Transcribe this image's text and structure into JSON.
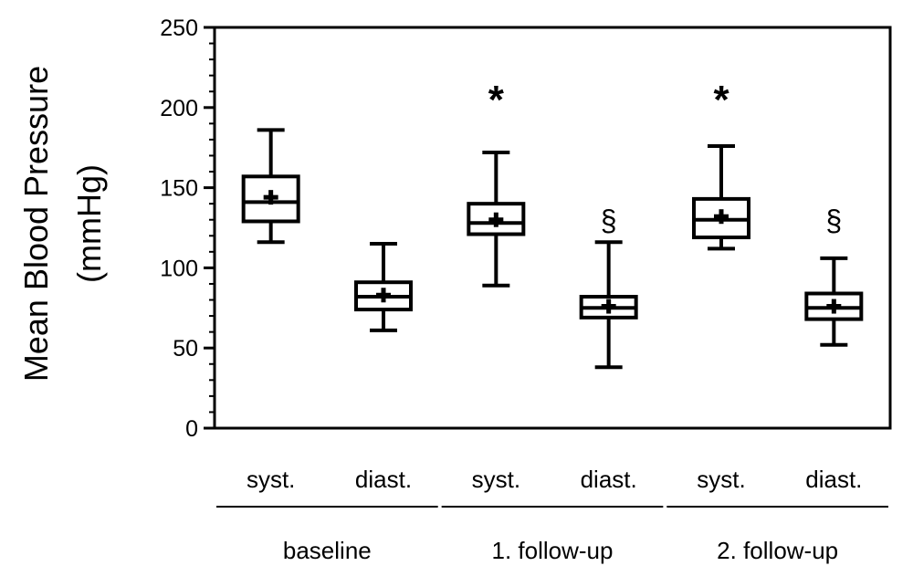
{
  "chart_data": {
    "type": "box",
    "ylabel_line1": "Mean Blood Pressure",
    "ylabel_line2": "(mmHg)",
    "ylim": [
      0,
      250
    ],
    "yticks": [
      0,
      50,
      100,
      150,
      200,
      250
    ],
    "ytick_labels": [
      "0",
      "50",
      "100",
      "150",
      "200",
      "250"
    ],
    "minor_ticks": true,
    "grid": false,
    "legend": "none",
    "categories": [
      "syst.",
      "diast.",
      "syst.",
      "diast.",
      "syst.",
      "diast."
    ],
    "groups": [
      {
        "label": "baseline",
        "span": [
          0,
          1
        ]
      },
      {
        "label": "1. follow-up",
        "span": [
          2,
          3
        ]
      },
      {
        "label": "2. follow-up",
        "span": [
          4,
          5
        ]
      }
    ],
    "boxes": [
      {
        "min": 116,
        "q1": 129,
        "median": 141,
        "mean": 144,
        "q3": 157,
        "max": 186
      },
      {
        "min": 61,
        "q1": 74,
        "median": 82,
        "mean": 83,
        "q3": 91,
        "max": 115
      },
      {
        "min": 89,
        "q1": 121,
        "median": 128,
        "mean": 130,
        "q3": 140,
        "max": 172
      },
      {
        "min": 38,
        "q1": 69,
        "median": 75,
        "mean": 76,
        "q3": 82,
        "max": 116
      },
      {
        "min": 112,
        "q1": 119,
        "median": 130,
        "mean": 132,
        "q3": 143,
        "max": 176
      },
      {
        "min": 52,
        "q1": 68,
        "median": 75,
        "mean": 76,
        "q3": 84,
        "max": 106
      }
    ],
    "annotations": [
      {
        "box_index": 2,
        "text": "*",
        "y": 208
      },
      {
        "box_index": 3,
        "text": "§",
        "y": 130
      },
      {
        "box_index": 4,
        "text": "*",
        "y": 208
      },
      {
        "box_index": 5,
        "text": "§",
        "y": 130
      }
    ]
  }
}
